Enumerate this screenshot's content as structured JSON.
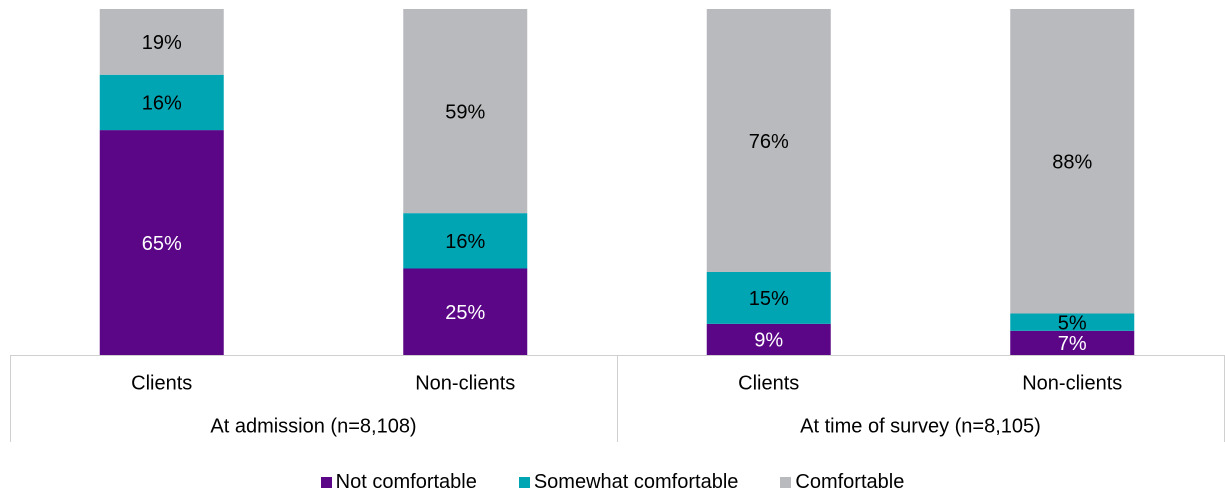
{
  "chart_data": {
    "type": "bar",
    "stacked": true,
    "groups": [
      {
        "label": "At admission (n=8,108)",
        "categories": [
          "Clients",
          "Non-clients"
        ]
      },
      {
        "label": "At time of survey (n=8,105)",
        "categories": [
          "Clients",
          "Non-clients"
        ]
      }
    ],
    "categories": [
      "Clients",
      "Non-clients",
      "Clients",
      "Non-clients"
    ],
    "series": [
      {
        "name": "Not comfortable",
        "color": "#5a0687",
        "values": [
          65,
          25,
          9,
          7
        ],
        "labels": [
          "65%",
          "25%",
          "9%",
          "7%"
        ]
      },
      {
        "name": "Somewhat comfortable",
        "color": "#00a5b4",
        "values": [
          16,
          16,
          15,
          5
        ],
        "labels": [
          "16%",
          "16%",
          "15%",
          "5%"
        ]
      },
      {
        "name": "Comfortable",
        "color": "#b9babd",
        "values": [
          19,
          59,
          76,
          88
        ],
        "labels": [
          "19%",
          "59%",
          "76%",
          "88%"
        ]
      }
    ],
    "ylim": [
      0,
      100
    ],
    "legend_position": "bottom"
  }
}
